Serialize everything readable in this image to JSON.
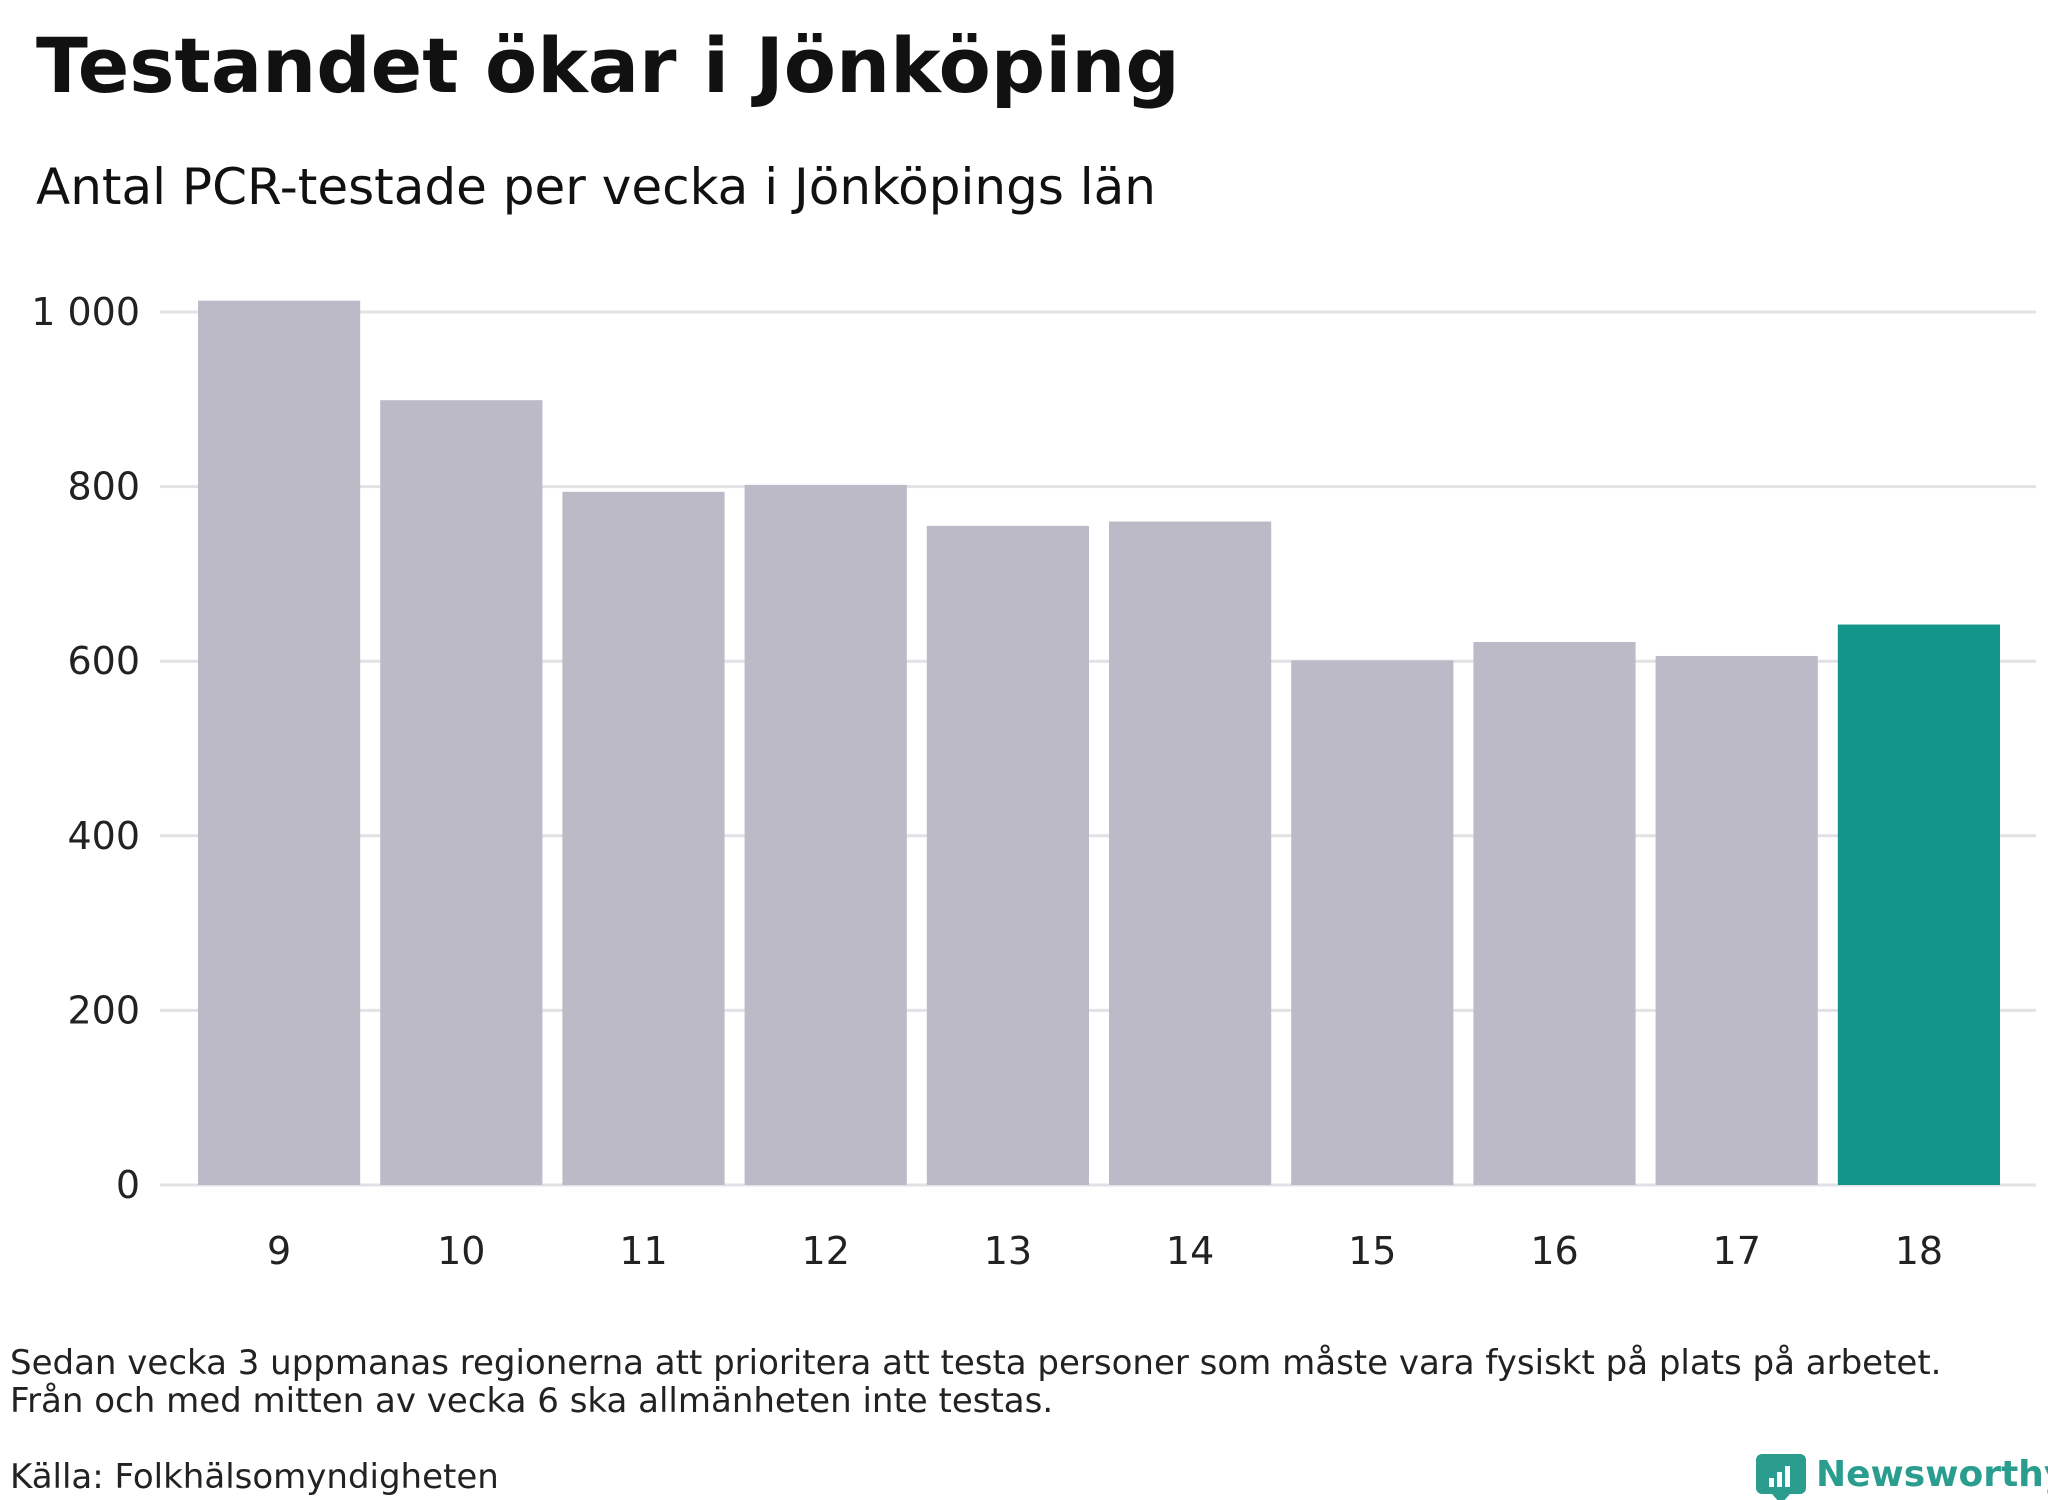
{
  "chart_data": {
    "type": "bar",
    "title": "Testandet ökar i Jönköping",
    "subtitle": "Antal PCR-testade per vecka i Jönköpings län",
    "categories": [
      "9",
      "10",
      "11",
      "12",
      "13",
      "14",
      "15",
      "16",
      "17",
      "18"
    ],
    "values": [
      1013,
      899,
      794,
      802,
      755,
      760,
      601,
      622,
      606,
      642
    ],
    "ylim": [
      0,
      1000
    ],
    "yticks": [
      0,
      200,
      400,
      600,
      800,
      1000
    ],
    "ytick_labels": [
      "0",
      "200",
      "400",
      "600",
      "800",
      "1 000"
    ],
    "grid": true,
    "colors": {
      "default_bar": "#bcbac7",
      "highlight_bar": "#13958a",
      "grid": "#e2e2e6"
    },
    "highlight_category": "18"
  },
  "notes": {
    "line1": "Sedan vecka 3 uppmanas regionerna att prioritera att testa personer som måste vara fysiskt på plats på arbetet.",
    "line2": "Från och med mitten av vecka 6 ska allmänheten inte testas.",
    "source": "Källa: Folkhälsomyndigheten"
  },
  "brand": {
    "name": "Newsworthy",
    "icon": "bar-chart-pin-icon",
    "color": "#2a9d8f"
  }
}
